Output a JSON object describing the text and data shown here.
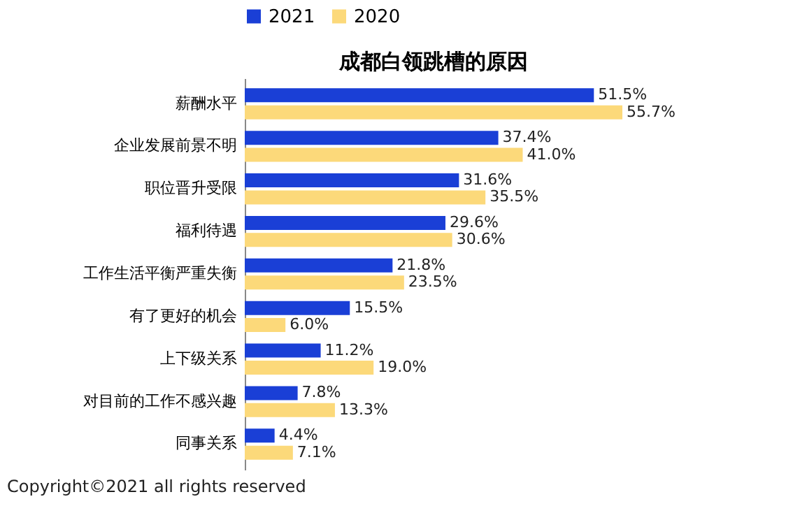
{
  "chart_data": {
    "type": "bar",
    "orientation": "horizontal",
    "title": "成都白领跳槽的原因",
    "legend": "top",
    "categories": [
      "薪酬水平",
      "企业发展前景不明",
      "职位晋升受限",
      "福利待遇",
      "工作生活平衡严重失衡",
      "有了更好的机会",
      "上下级关系",
      "对目前的工作不感兴趣",
      "同事关系"
    ],
    "series": [
      {
        "name": "2021",
        "color": "#1a3fd6",
        "values": [
          51.5,
          37.4,
          31.6,
          29.6,
          21.8,
          15.5,
          11.2,
          7.8,
          4.4
        ],
        "value_labels": [
          "51.5%",
          "37.4%",
          "31.6%",
          "29.6%",
          "21.8%",
          "15.5%",
          "11.2%",
          "7.8%",
          "4.4%"
        ]
      },
      {
        "name": "2020",
        "color": "#fcd97a",
        "values": [
          55.7,
          41.0,
          35.5,
          30.6,
          23.5,
          6.0,
          19.0,
          13.3,
          7.1
        ],
        "value_labels": [
          "55.7%",
          "41.0%",
          "35.5%",
          "30.6%",
          "23.5%",
          "6.0%",
          "19.0%",
          "13.3%",
          "7.1%"
        ]
      }
    ],
    "annotations": [
      "Copyright©2021 all rights reserved"
    ]
  }
}
